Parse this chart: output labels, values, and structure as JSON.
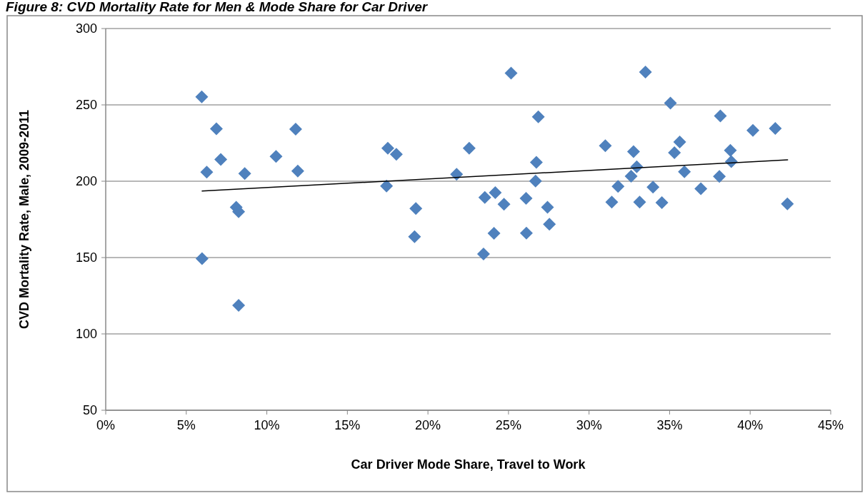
{
  "chart_data": {
    "type": "scatter",
    "title": "Figure 8: CVD Mortality Rate for Men & Mode Share for Car Driver",
    "xlabel": "Car Driver Mode Share, Travel to Work",
    "ylabel": "CVD Mortality Rate, Male, 2009-2011",
    "xlim": [
      0,
      45
    ],
    "xticks": [
      {
        "value": 0,
        "label": "0%"
      },
      {
        "value": 5,
        "label": "5%"
      },
      {
        "value": 10,
        "label": "10%"
      },
      {
        "value": 15,
        "label": "15%"
      },
      {
        "value": 20,
        "label": "20%"
      },
      {
        "value": 25,
        "label": "25%"
      },
      {
        "value": 30,
        "label": "30%"
      },
      {
        "value": 35,
        "label": "35%"
      },
      {
        "value": 40,
        "label": "40%"
      },
      {
        "value": 45,
        "label": "45%"
      }
    ],
    "ylim": [
      50,
      300
    ],
    "yticks": [
      50,
      100,
      150,
      200,
      250,
      300
    ],
    "grid": "y",
    "series": [
      {
        "color": "#4f81bd",
        "marker": "diamond",
        "x": [
          5.96,
          6.87,
          11.79,
          7.14,
          10.57,
          6.27,
          8.63,
          11.92,
          8.1,
          8.25,
          5.98,
          8.25,
          25.16,
          26.85,
          17.51,
          18.04,
          22.56,
          26.73,
          21.78,
          26.68,
          17.43,
          23.53,
          24.18,
          24.72,
          26.09,
          27.42,
          27.54,
          19.25,
          19.17,
          24.1,
          26.11,
          23.45,
          33.5,
          35.05,
          38.15,
          40.17,
          41.56,
          31.01,
          32.76,
          35.63,
          35.3,
          38.77,
          32.96,
          38.83,
          32.61,
          35.92,
          38.09,
          31.8,
          33.97,
          36.94,
          31.41,
          33.14,
          34.52,
          42.31
        ],
        "values": [
          255.3,
          234.3,
          234.1,
          214.3,
          216.2,
          205.9,
          205,
          206.7,
          182.9,
          180,
          149.3,
          118.7,
          270.8,
          242.2,
          221.6,
          217.6,
          221.6,
          212.4,
          204.5,
          200.1,
          196.9,
          189.4,
          192.5,
          184.9,
          188.8,
          182.9,
          171.8,
          182.1,
          163.7,
          165.9,
          166,
          152.3,
          271.5,
          251.2,
          242.7,
          233.3,
          234.6,
          223.2,
          219.4,
          225.7,
          218.7,
          220.2,
          209.5,
          212.8,
          203.3,
          206.2,
          203.1,
          196.6,
          196.1,
          195.1,
          186.3,
          186.3,
          186,
          185.2
        ]
      },
      {
        "type": "line",
        "color": "#000000",
        "marker": "none",
        "line_style": "solid",
        "x": [
          5.96,
          42.35
        ],
        "values": [
          193.6,
          214.0
        ]
      }
    ]
  }
}
